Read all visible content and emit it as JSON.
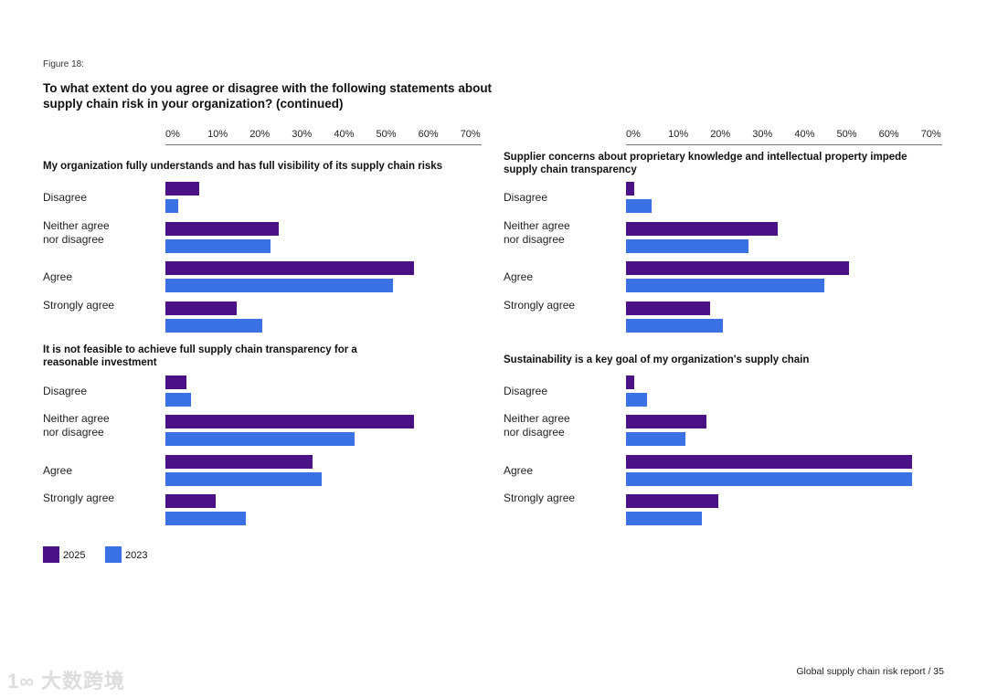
{
  "figure_label": "Figure 18:",
  "title": "To what extent do you agree or disagree with the following statements about supply chain risk in your organization? (continued)",
  "footer": "Global supply chain risk report   /   35",
  "watermark": "大数跨境",
  "colors": {
    "2025": "#4b1287",
    "2023": "#3a72e6"
  },
  "chart_data": [
    {
      "type": "bar",
      "orientation": "horizontal",
      "title": "My organization fully understands and has full visibility of its supply chain risks",
      "categories": [
        "Disagree",
        "Neither agree nor disagree",
        "Agree",
        "Strongly agree"
      ],
      "series": [
        {
          "name": "2025",
          "values": [
            8,
            27,
            59,
            17
          ]
        },
        {
          "name": "2023",
          "values": [
            3,
            25,
            54,
            23
          ]
        }
      ],
      "xlim": [
        0,
        70
      ],
      "ticks": [
        "0%",
        "10%",
        "20%",
        "30%",
        "40%",
        "50%",
        "60%",
        "70%"
      ]
    },
    {
      "type": "bar",
      "orientation": "horizontal",
      "title": "Supplier concerns about proprietary knowledge and intellectual property impede supply chain transparency",
      "categories": [
        "Disagree",
        "Neither agree nor disagree",
        "Agree",
        "Strongly agree"
      ],
      "series": [
        {
          "name": "2025",
          "values": [
            2,
            36,
            53,
            20
          ]
        },
        {
          "name": "2023",
          "values": [
            6,
            29,
            47,
            23
          ]
        }
      ],
      "xlim": [
        0,
        70
      ],
      "ticks": [
        "0%",
        "10%",
        "20%",
        "30%",
        "40%",
        "50%",
        "60%",
        "70%"
      ]
    },
    {
      "type": "bar",
      "orientation": "horizontal",
      "title": "It is not feasible to achieve full supply chain transparency for a reasonable investment",
      "categories": [
        "Disagree",
        "Neither agree nor disagree",
        "Agree",
        "Strongly agree"
      ],
      "series": [
        {
          "name": "2025",
          "values": [
            5,
            59,
            35,
            12
          ]
        },
        {
          "name": "2023",
          "values": [
            6,
            45,
            37,
            19
          ]
        }
      ],
      "xlim": [
        0,
        70
      ]
    },
    {
      "type": "bar",
      "orientation": "horizontal",
      "title": "Sustainability is a key goal of my organization's supply chain",
      "categories": [
        "Disagree",
        "Neither agree nor disagree",
        "Agree",
        "Strongly agree"
      ],
      "series": [
        {
          "name": "2025",
          "values": [
            2,
            19,
            68,
            22
          ]
        },
        {
          "name": "2023",
          "values": [
            5,
            14,
            68,
            18
          ]
        }
      ],
      "xlim": [
        0,
        70
      ]
    }
  ],
  "legend": [
    {
      "label": "2025"
    },
    {
      "label": "2023"
    }
  ]
}
